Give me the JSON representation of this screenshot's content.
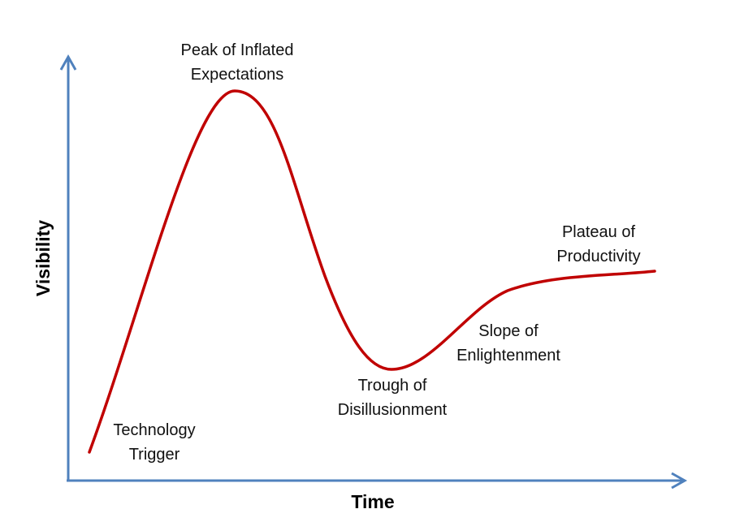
{
  "axes": {
    "x_title": "Time",
    "y_title": "Visibility",
    "axis_color": "#4f81bd"
  },
  "curve": {
    "color": "#c00000"
  },
  "phases": [
    {
      "line1": "Technology",
      "line2": "Trigger"
    },
    {
      "line1": "Peak of Inflated",
      "line2": "Expectations"
    },
    {
      "line1": "Trough of",
      "line2": "Disillusionment"
    },
    {
      "line1": "Slope of",
      "line2": "Enlightenment"
    },
    {
      "line1": "Plateau of",
      "line2": "Productivity"
    }
  ]
}
